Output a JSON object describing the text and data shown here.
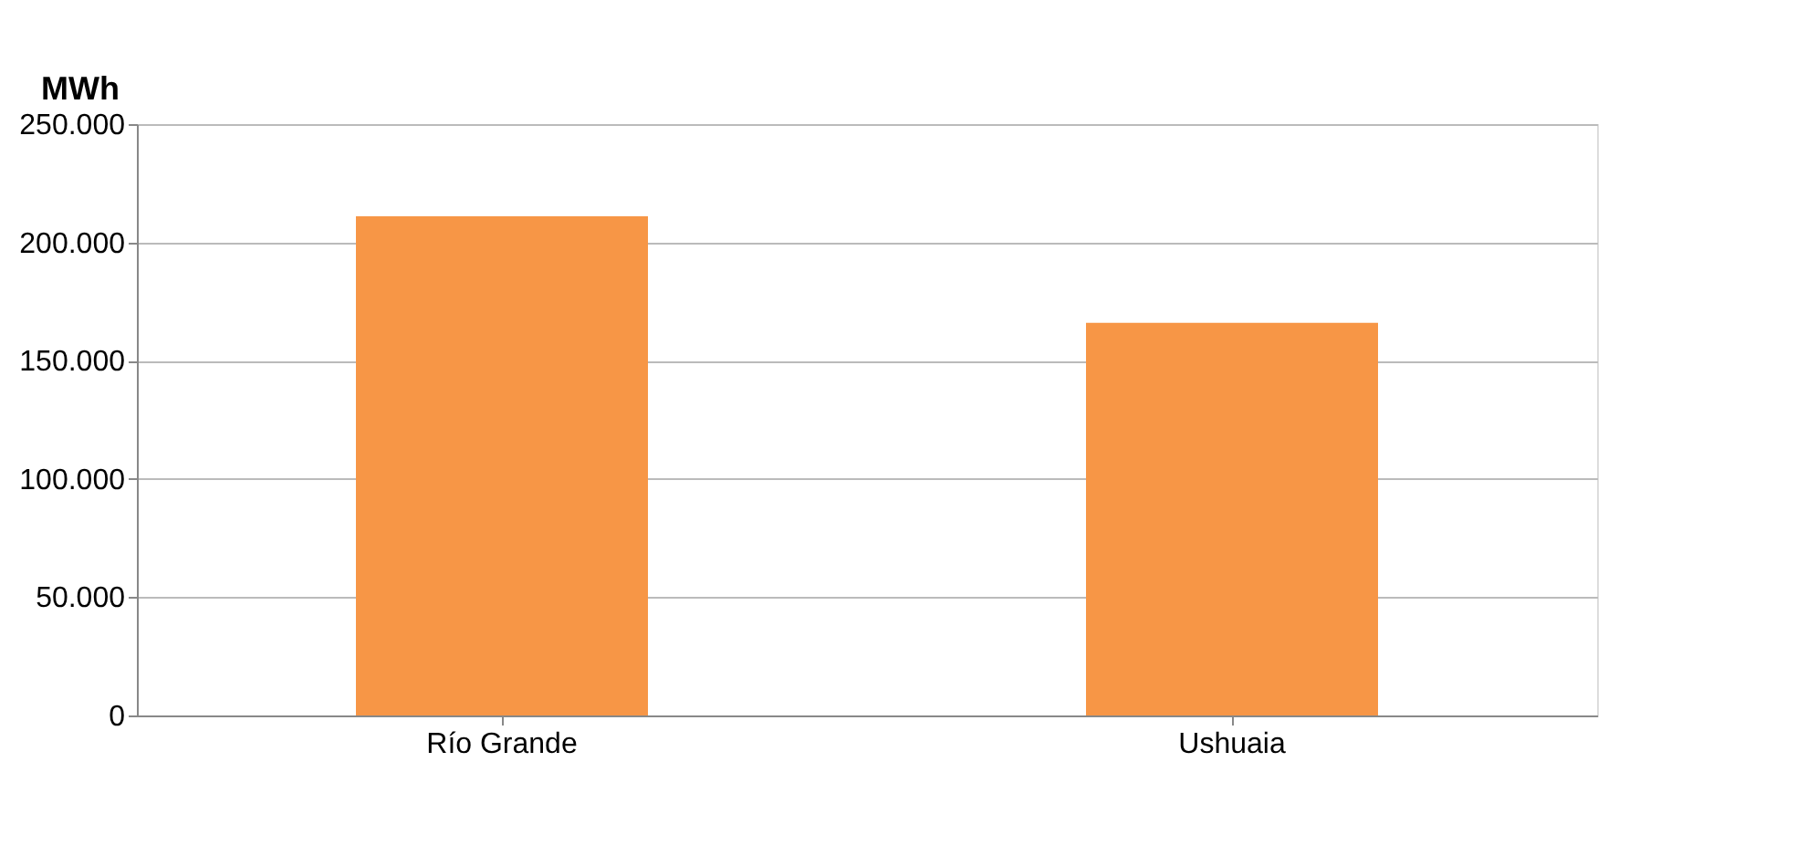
{
  "chart_data": {
    "type": "bar",
    "ylabel": "MWh",
    "categories": [
      "Río Grande",
      "Ushuaia"
    ],
    "values": [
      211000,
      166000
    ],
    "color": "#f79646",
    "ylim": [
      0,
      250000
    ],
    "yticks": [
      {
        "value": 0,
        "label": "0"
      },
      {
        "value": 50000,
        "label": "50.000"
      },
      {
        "value": 100000,
        "label": "100.000"
      },
      {
        "value": 150000,
        "label": "150.000"
      },
      {
        "value": 200000,
        "label": "200.000"
      },
      {
        "value": 250000,
        "label": "250.000"
      }
    ],
    "grid": "y"
  }
}
